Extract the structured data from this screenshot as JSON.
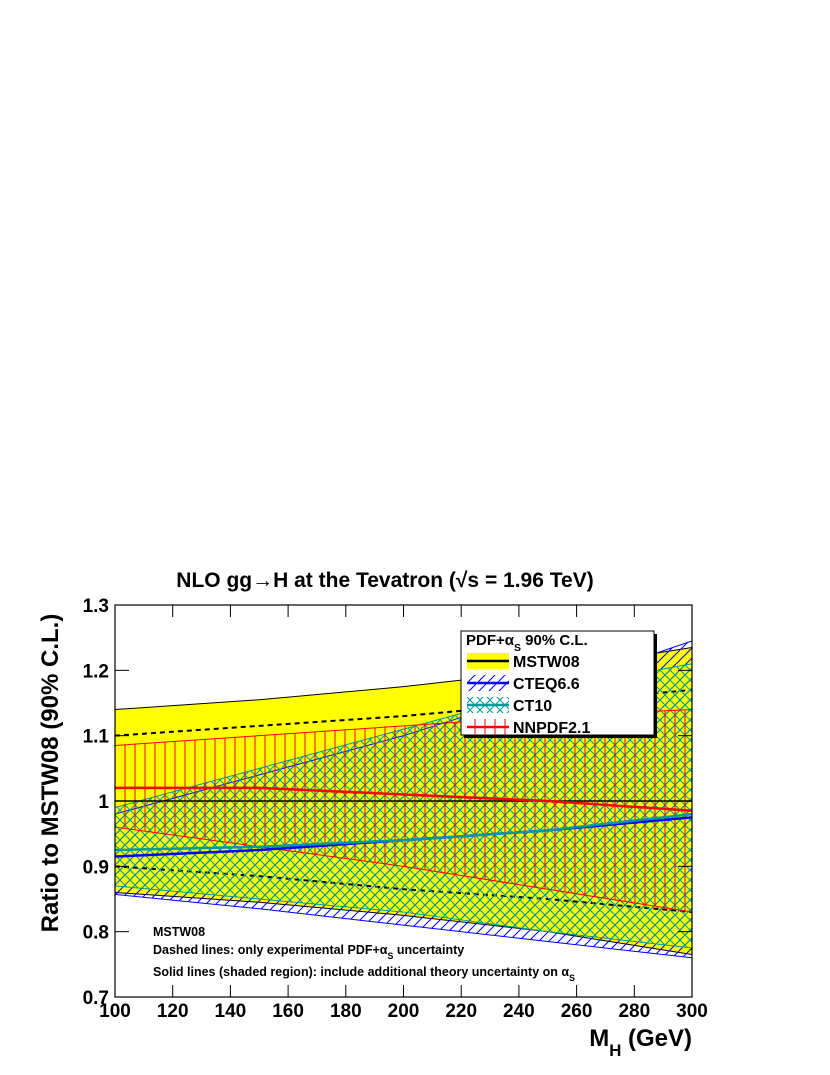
{
  "chart_data": {
    "type": "band",
    "title": "NLO gg→H at the Tevatron (√s = 1.96 TeV)",
    "x_label": [
      "M",
      "H",
      "  (GeV)"
    ],
    "y_label": "Ratio to MSTW08 (90% C.L.)",
    "x": [
      100,
      150,
      200,
      250,
      300
    ],
    "xlim": [
      100,
      300
    ],
    "ylim": [
      0.7,
      1.3
    ],
    "xticks": [
      100,
      120,
      140,
      160,
      180,
      200,
      220,
      240,
      260,
      280,
      300
    ],
    "yticks": [
      0.7,
      0.8,
      0.9,
      1,
      1.1,
      1.2,
      1.3
    ],
    "legend_title": [
      "PDF+α",
      "S",
      " 90% C.L."
    ],
    "legend_position": "upper right",
    "series": [
      {
        "name": "MSTW08",
        "color": "#000000",
        "fill": "#ffff00",
        "hatch": "solid",
        "values": [
          1,
          1,
          1,
          1,
          1
        ],
        "upper": [
          1.14,
          1.155,
          1.175,
          1.2,
          1.235
        ],
        "lower": [
          0.86,
          0.845,
          0.825,
          0.8,
          0.765
        ],
        "exp_upper": [
          1.1,
          1.115,
          1.13,
          1.15,
          1.17
        ],
        "exp_lower": [
          0.9,
          0.885,
          0.865,
          0.85,
          0.83
        ]
      },
      {
        "name": "CTEQ6.6",
        "color": "#0000ff",
        "hatch": "diagonal",
        "values": [
          0.915,
          0.925,
          0.94,
          0.955,
          0.975
        ],
        "upper": [
          0.98,
          1.04,
          1.1,
          1.17,
          1.245
        ],
        "lower": [
          0.857,
          0.835,
          0.81,
          0.785,
          0.76
        ]
      },
      {
        "name": "CT10",
        "color": "#009999",
        "hatch": "cross",
        "values": [
          0.925,
          0.93,
          0.94,
          0.955,
          0.98
        ],
        "upper": [
          0.99,
          1.05,
          1.11,
          1.17,
          1.21
        ],
        "lower": [
          0.87,
          0.85,
          0.83,
          0.8,
          0.775
        ]
      },
      {
        "name": "NNPDF2.1",
        "color": "#ff0000",
        "hatch": "vertical",
        "values": [
          1.02,
          1.02,
          1.01,
          1,
          0.985
        ],
        "upper": [
          1.085,
          1.1,
          1.115,
          1.13,
          1.14
        ],
        "lower": [
          0.96,
          0.93,
          0.9,
          0.865,
          0.83
        ]
      }
    ],
    "annotations": [
      [
        "MSTW08"
      ],
      [
        "Dashed lines: only experimental PDF+α",
        "S",
        " uncertainty"
      ],
      [
        "Solid lines (shaded region): include additional theory uncertainty on α",
        "S"
      ]
    ]
  }
}
